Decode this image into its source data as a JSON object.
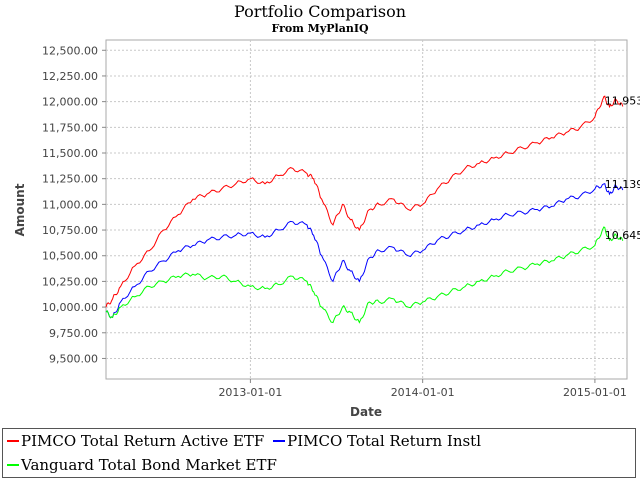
{
  "chart_data": {
    "type": "line",
    "title": "Portfolio Comparison",
    "subtitle": "From MyPlanIQ",
    "xlabel": "Date",
    "ylabel": "Amount",
    "x_range": [
      "2012-03-01",
      "2015-03-10"
    ],
    "ylim": [
      9300,
      12600
    ],
    "y_ticks": [
      9500,
      9750,
      10000,
      10250,
      10500,
      10750,
      11000,
      11250,
      11500,
      11750,
      12000,
      12250,
      12500
    ],
    "y_tick_labels": [
      "9,500.00",
      "9,750.00",
      "10,000.00",
      "10,250.00",
      "10,500.00",
      "10,750.00",
      "11,000.00",
      "11,250.00",
      "11,500.00",
      "11,750.00",
      "12,000.00",
      "12,250.00",
      "12,500.00"
    ],
    "x_ticks": [
      "2013-01-01",
      "2014-01-01",
      "2015-01-01"
    ],
    "grid": true,
    "legend_position": "bottom",
    "series": [
      {
        "name": "PIMCO Total Return Active ETF",
        "color": "#ff0000",
        "end_label": "11,953",
        "x": [
          "2012-03-01",
          "2012-03-15",
          "2012-04-01",
          "2012-05-01",
          "2012-06-01",
          "2012-07-01",
          "2012-08-01",
          "2012-09-01",
          "2012-10-01",
          "2012-11-01",
          "2012-12-01",
          "2013-01-01",
          "2013-02-01",
          "2013-03-01",
          "2013-04-01",
          "2013-05-01",
          "2013-05-15",
          "2013-06-01",
          "2013-06-25",
          "2013-07-15",
          "2013-08-01",
          "2013-08-20",
          "2013-09-10",
          "2013-10-01",
          "2013-11-01",
          "2013-12-01",
          "2014-01-01",
          "2014-02-01",
          "2014-03-01",
          "2014-04-01",
          "2014-05-01",
          "2014-06-01",
          "2014-07-01",
          "2014-08-01",
          "2014-09-01",
          "2014-10-01",
          "2014-11-01",
          "2014-12-01",
          "2015-01-01",
          "2015-01-20",
          "2015-02-01",
          "2015-02-15",
          "2015-03-01"
        ],
        "values": [
          10000,
          10080,
          10200,
          10400,
          10550,
          10750,
          10900,
          11050,
          11100,
          11150,
          11200,
          11250,
          11200,
          11280,
          11350,
          11300,
          11250,
          11050,
          10800,
          11000,
          10850,
          10750,
          10950,
          11000,
          11050,
          10950,
          11000,
          11150,
          11250,
          11350,
          11400,
          11450,
          11500,
          11550,
          11600,
          11650,
          11700,
          11750,
          11850,
          12050,
          11950,
          12020,
          11953
        ]
      },
      {
        "name": "PIMCO Total Return Instl",
        "color": "#0000ff",
        "end_label": "11,139",
        "x": [
          "2012-03-01",
          "2012-03-15",
          "2012-04-01",
          "2012-05-01",
          "2012-06-01",
          "2012-07-01",
          "2012-08-01",
          "2012-09-01",
          "2012-10-01",
          "2012-11-01",
          "2012-12-01",
          "2013-01-01",
          "2013-02-01",
          "2013-03-01",
          "2013-04-01",
          "2013-05-01",
          "2013-05-15",
          "2013-06-01",
          "2013-06-25",
          "2013-07-15",
          "2013-08-01",
          "2013-08-20",
          "2013-09-10",
          "2013-10-01",
          "2013-11-01",
          "2013-12-01",
          "2014-01-01",
          "2014-02-01",
          "2014-03-01",
          "2014-04-01",
          "2014-05-01",
          "2014-06-01",
          "2014-07-01",
          "2014-08-01",
          "2014-09-01",
          "2014-10-01",
          "2014-11-01",
          "2014-12-01",
          "2015-01-01",
          "2015-01-20",
          "2015-02-01",
          "2015-02-15",
          "2015-03-01"
        ],
        "values": [
          9950,
          9900,
          10050,
          10200,
          10350,
          10450,
          10550,
          10600,
          10650,
          10680,
          10700,
          10720,
          10680,
          10750,
          10830,
          10800,
          10700,
          10500,
          10250,
          10450,
          10350,
          10250,
          10480,
          10550,
          10580,
          10500,
          10550,
          10650,
          10700,
          10750,
          10800,
          10850,
          10900,
          10920,
          10950,
          10980,
          11050,
          11080,
          11150,
          11200,
          11100,
          11180,
          11139
        ]
      },
      {
        "name": "Vanguard Total Bond Market ETF",
        "color": "#00ff00",
        "end_label": "10,645",
        "x": [
          "2012-03-01",
          "2012-03-15",
          "2012-04-01",
          "2012-05-01",
          "2012-06-01",
          "2012-07-01",
          "2012-08-01",
          "2012-09-01",
          "2012-10-01",
          "2012-11-01",
          "2012-12-01",
          "2013-01-01",
          "2013-02-01",
          "2013-03-01",
          "2013-04-01",
          "2013-05-01",
          "2013-05-15",
          "2013-06-01",
          "2013-06-25",
          "2013-07-15",
          "2013-08-01",
          "2013-08-20",
          "2013-09-10",
          "2013-10-01",
          "2013-11-01",
          "2013-12-01",
          "2014-01-01",
          "2014-02-01",
          "2014-03-01",
          "2014-04-01",
          "2014-05-01",
          "2014-06-01",
          "2014-07-01",
          "2014-08-01",
          "2014-09-01",
          "2014-10-01",
          "2014-11-01",
          "2014-12-01",
          "2015-01-01",
          "2015-01-20",
          "2015-02-01",
          "2015-02-15",
          "2015-03-01"
        ],
        "values": [
          9950,
          9900,
          10000,
          10100,
          10200,
          10250,
          10300,
          10320,
          10280,
          10300,
          10250,
          10200,
          10180,
          10220,
          10300,
          10250,
          10150,
          10000,
          9850,
          10000,
          9950,
          9850,
          10050,
          10050,
          10080,
          10000,
          10050,
          10100,
          10150,
          10200,
          10250,
          10300,
          10350,
          10380,
          10420,
          10450,
          10500,
          10550,
          10600,
          10780,
          10650,
          10700,
          10645
        ]
      }
    ]
  }
}
